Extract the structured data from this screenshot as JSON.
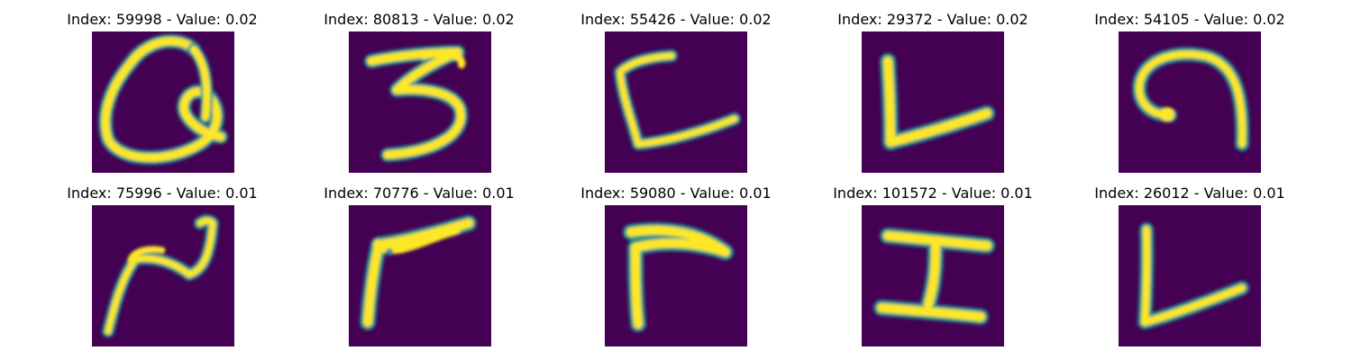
{
  "chart_data": {
    "type": "image-grid",
    "colormap": {
      "name": "viridis",
      "low": "#440154",
      "mid": "#21918c",
      "high": "#fde725"
    },
    "panels": [
      {
        "title": "Index: 59998 - Value: 0.02",
        "index": 59998,
        "value": 0.02,
        "glyph": "Q"
      },
      {
        "title": "Index: 80813 - Value: 0.02",
        "index": 80813,
        "value": 0.02,
        "glyph": "3"
      },
      {
        "title": "Index: 55426 - Value: 0.02",
        "index": 55426,
        "value": 0.02,
        "glyph": "C"
      },
      {
        "title": "Index: 29372 - Value: 0.02",
        "index": 29372,
        "value": 0.02,
        "glyph": "L"
      },
      {
        "title": "Index: 54105 - Value: 0.02",
        "index": 54105,
        "value": 0.02,
        "glyph": "e"
      },
      {
        "title": "Index: 75996 - Value: 0.01",
        "index": 75996,
        "value": 0.01,
        "glyph": "N"
      },
      {
        "title": "Index: 70776 - Value: 0.01",
        "index": 70776,
        "value": 0.01,
        "glyph": "V"
      },
      {
        "title": "Index: 59080 - Value: 0.01",
        "index": 59080,
        "value": 0.01,
        "glyph": "r"
      },
      {
        "title": "Index: 101572 - Value: 0.01",
        "index": 101572,
        "value": 0.01,
        "glyph": "I"
      },
      {
        "title": "Index: 26012 - Value: 0.01",
        "index": 26012,
        "value": 0.01,
        "glyph": "L"
      }
    ]
  }
}
